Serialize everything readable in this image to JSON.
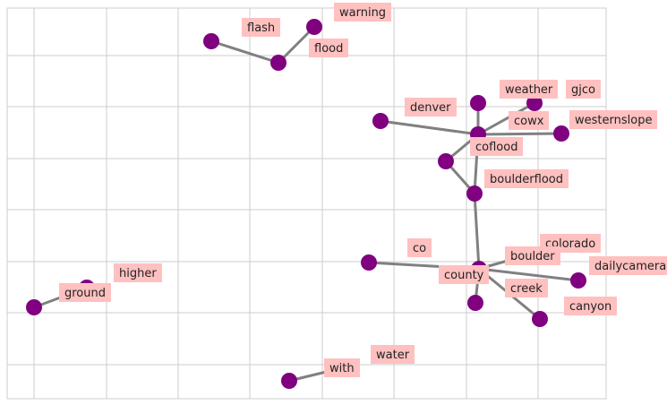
{
  "diagram": {
    "type": "network-graph",
    "grid": true,
    "colors": {
      "node": "#800080",
      "edge": "#808080",
      "label_background": "#ffc0c0",
      "grid": "#cccccc"
    },
    "nodes": [
      {
        "id": "warning",
        "label": "warning"
      },
      {
        "id": "flash",
        "label": "flash"
      },
      {
        "id": "flood",
        "label": "flood"
      },
      {
        "id": "weather",
        "label": "weather"
      },
      {
        "id": "gjco",
        "label": "gjco"
      },
      {
        "id": "denver",
        "label": "denver"
      },
      {
        "id": "cowx",
        "label": "cowx"
      },
      {
        "id": "westernslope",
        "label": "westernslope"
      },
      {
        "id": "coflood",
        "label": "coflood"
      },
      {
        "id": "boulderflood",
        "label": "boulderflood"
      },
      {
        "id": "colorado",
        "label": "colorado"
      },
      {
        "id": "co",
        "label": "co"
      },
      {
        "id": "boulder",
        "label": "boulder"
      },
      {
        "id": "dailycamera",
        "label": "dailycamera"
      },
      {
        "id": "county",
        "label": "county"
      },
      {
        "id": "creek",
        "label": "creek"
      },
      {
        "id": "canyon",
        "label": "canyon"
      },
      {
        "id": "higher",
        "label": "higher"
      },
      {
        "id": "ground",
        "label": "ground"
      },
      {
        "id": "water",
        "label": "water"
      },
      {
        "id": "with",
        "label": "with"
      }
    ],
    "edges": [
      [
        "warning",
        "flood"
      ],
      [
        "flash",
        "flood"
      ],
      [
        "coflood",
        "weather"
      ],
      [
        "coflood",
        "gjco"
      ],
      [
        "coflood",
        "denver"
      ],
      [
        "coflood",
        "cowx"
      ],
      [
        "coflood",
        "westernslope"
      ],
      [
        "coflood",
        "boulderflood"
      ],
      [
        "boulderflood",
        "county"
      ],
      [
        "county",
        "colorado"
      ],
      [
        "county",
        "co"
      ],
      [
        "county",
        "boulder"
      ],
      [
        "county",
        "dailycamera"
      ],
      [
        "county",
        "creek"
      ],
      [
        "county",
        "canyon"
      ],
      [
        "higher",
        "ground"
      ],
      [
        "water",
        "with"
      ]
    ]
  }
}
